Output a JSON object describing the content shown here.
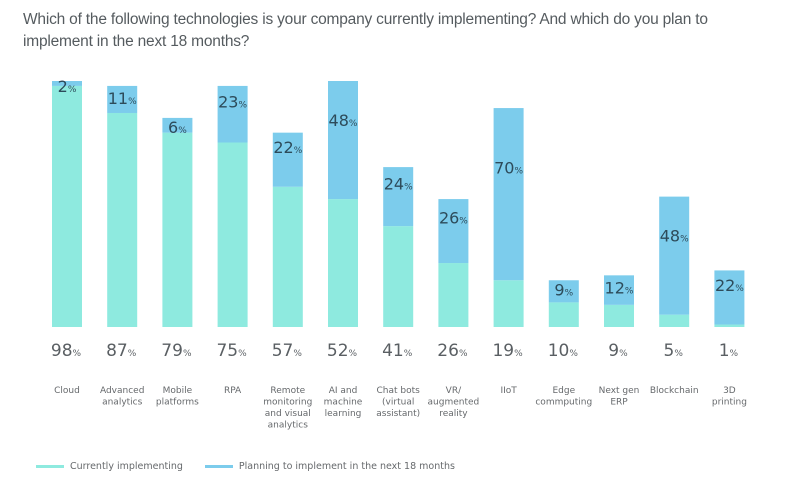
{
  "chart_data": {
    "type": "bar",
    "stacked": true,
    "title": "Which of the following technologies is your company currently implementing? And which do you plan to implement in the next 18 months?",
    "xlabel": "",
    "ylabel": "",
    "ylim": [
      0,
      100
    ],
    "grid": false,
    "legend_position": "bottom-left",
    "unit_suffix": "%",
    "categories": [
      [
        "Cloud"
      ],
      [
        "Advanced",
        "analytics"
      ],
      [
        "Mobile",
        "platforms"
      ],
      [
        "RPA"
      ],
      [
        "Remote",
        "monitoring",
        "and visual",
        "analytics"
      ],
      [
        "AI and",
        "machine",
        "learning"
      ],
      [
        "Chat bots",
        "(virtual",
        "assistant)"
      ],
      [
        "VR/",
        "augmented",
        "reality"
      ],
      [
        "IIoT"
      ],
      [
        "Edge",
        "commputing"
      ],
      [
        "Next gen",
        "ERP"
      ],
      [
        "Blockchain"
      ],
      [
        "3D",
        "printing"
      ]
    ],
    "series": [
      {
        "name": "Currently implementing",
        "color": "#8eeadf",
        "values": [
          98,
          87,
          79,
          75,
          57,
          52,
          41,
          26,
          19,
          10,
          9,
          5,
          1
        ]
      },
      {
        "name": "Planning to implement in the next 18 months",
        "color": "#7cccec",
        "values": [
          2,
          11,
          6,
          23,
          22,
          48,
          24,
          26,
          70,
          9,
          12,
          48,
          22
        ]
      }
    ]
  }
}
